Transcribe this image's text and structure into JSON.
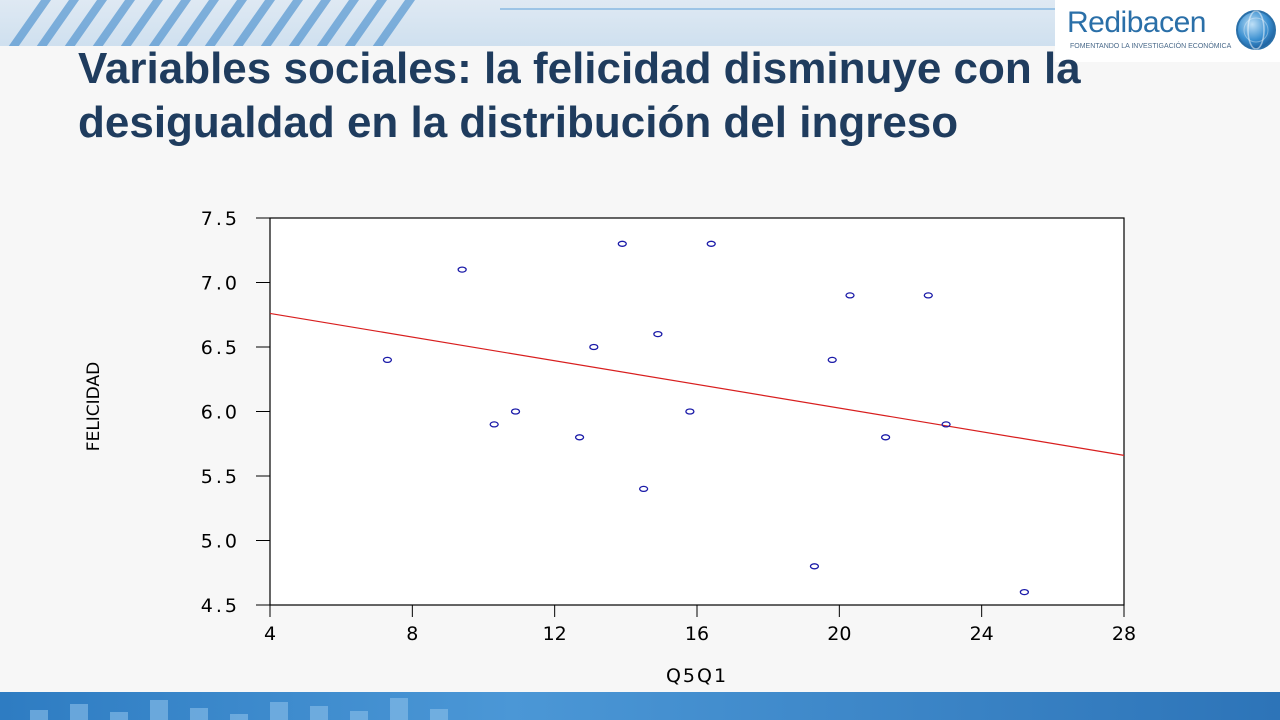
{
  "slide": {
    "title": "Variables sociales: la felicidad disminuye con la desigualdad en la distribución del ingreso"
  },
  "logo": {
    "name": "Redibacen",
    "tagline": "FOMENTANDO LA INVESTIGACIÓN ECONÓMICA"
  },
  "colors": {
    "title": "#1f3c5e",
    "points": "#1a1aa8",
    "fit_line": "#d81e1e",
    "banner_accent": "#2e7cc2"
  },
  "chart_data": {
    "type": "scatter",
    "title": "",
    "xlabel": "Q5Q1",
    "ylabel": "FELICIDAD",
    "xlim": [
      4,
      28
    ],
    "ylim": [
      4.5,
      7.5
    ],
    "xticks": [
      "4",
      "8",
      "12",
      "16",
      "20",
      "24",
      "28"
    ],
    "yticks": [
      "4.5",
      "5.0",
      "5.5",
      "6.0",
      "6.5",
      "7.0",
      "7.5"
    ],
    "grid": false,
    "legend": "none",
    "series": [
      {
        "points": [
          {
            "x": 7.3,
            "y": 6.4
          },
          {
            "x": 9.4,
            "y": 7.1
          },
          {
            "x": 10.3,
            "y": 5.9
          },
          {
            "x": 10.9,
            "y": 6.0
          },
          {
            "x": 12.7,
            "y": 5.8
          },
          {
            "x": 13.1,
            "y": 6.5
          },
          {
            "x": 13.9,
            "y": 7.3
          },
          {
            "x": 14.5,
            "y": 5.4
          },
          {
            "x": 14.9,
            "y": 6.6
          },
          {
            "x": 15.8,
            "y": 6.0
          },
          {
            "x": 16.4,
            "y": 7.3
          },
          {
            "x": 19.3,
            "y": 4.8
          },
          {
            "x": 19.8,
            "y": 6.4
          },
          {
            "x": 20.3,
            "y": 6.9
          },
          {
            "x": 21.3,
            "y": 5.8
          },
          {
            "x": 22.5,
            "y": 6.9
          },
          {
            "x": 23.0,
            "y": 5.9
          },
          {
            "x": 25.2,
            "y": 4.6
          }
        ]
      }
    ],
    "fit_line": {
      "x": [
        4,
        28
      ],
      "y": [
        6.76,
        5.66
      ]
    }
  }
}
